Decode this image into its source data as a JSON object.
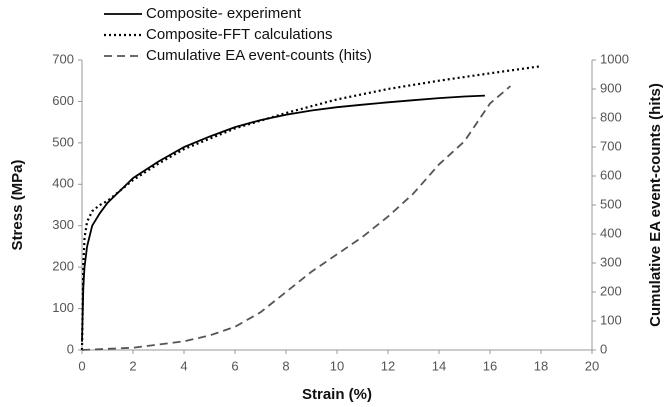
{
  "chart_data": {
    "type": "line",
    "xlabel": "Strain (%)",
    "ylabel": "Stress (MPa)",
    "y2label": "Cumulative EA event-counts (hits)",
    "xlim": [
      0,
      20
    ],
    "xticks": [
      0,
      2,
      4,
      6,
      8,
      10,
      12,
      14,
      16,
      18,
      20
    ],
    "ylim": [
      0,
      700
    ],
    "yticks": [
      0,
      100,
      200,
      300,
      400,
      500,
      600,
      700
    ],
    "y2lim": [
      0,
      1000
    ],
    "y2ticks": [
      0,
      100,
      200,
      300,
      400,
      500,
      600,
      700,
      800,
      900,
      1000
    ],
    "series": [
      {
        "name": "Composite- experiment",
        "color": "#000000",
        "style": "solid",
        "x": [
          0,
          0.05,
          0.1,
          0.2,
          0.4,
          0.7,
          1,
          1.5,
          2,
          3,
          4,
          5,
          6,
          7,
          8,
          9,
          10,
          11,
          12,
          13,
          14,
          15,
          15.8
        ],
        "values": [
          20,
          150,
          200,
          250,
          300,
          330,
          355,
          385,
          415,
          455,
          490,
          515,
          538,
          555,
          568,
          578,
          586,
          592,
          598,
          603,
          608,
          612,
          614
        ]
      },
      {
        "name": "Composite-FFT calculations",
        "color": "#000000",
        "style": "dotted",
        "x": [
          0,
          0.05,
          0.1,
          0.2,
          0.4,
          0.7,
          1,
          2,
          3,
          4,
          6,
          8,
          10,
          12,
          14,
          16,
          18
        ],
        "values": [
          0,
          200,
          270,
          310,
          335,
          350,
          360,
          410,
          450,
          485,
          535,
          572,
          605,
          630,
          650,
          668,
          685
        ]
      },
      {
        "name": "Cumulative EA event-counts (hits)",
        "color": "#555555",
        "style": "dashed",
        "axis": "y2",
        "x": [
          0,
          2,
          4,
          5,
          6,
          7,
          8,
          9,
          10,
          11,
          12,
          13,
          14,
          15,
          16,
          16.8
        ],
        "values": [
          0,
          8,
          30,
          50,
          80,
          130,
          200,
          270,
          330,
          390,
          460,
          540,
          640,
          720,
          850,
          910
        ]
      }
    ]
  }
}
